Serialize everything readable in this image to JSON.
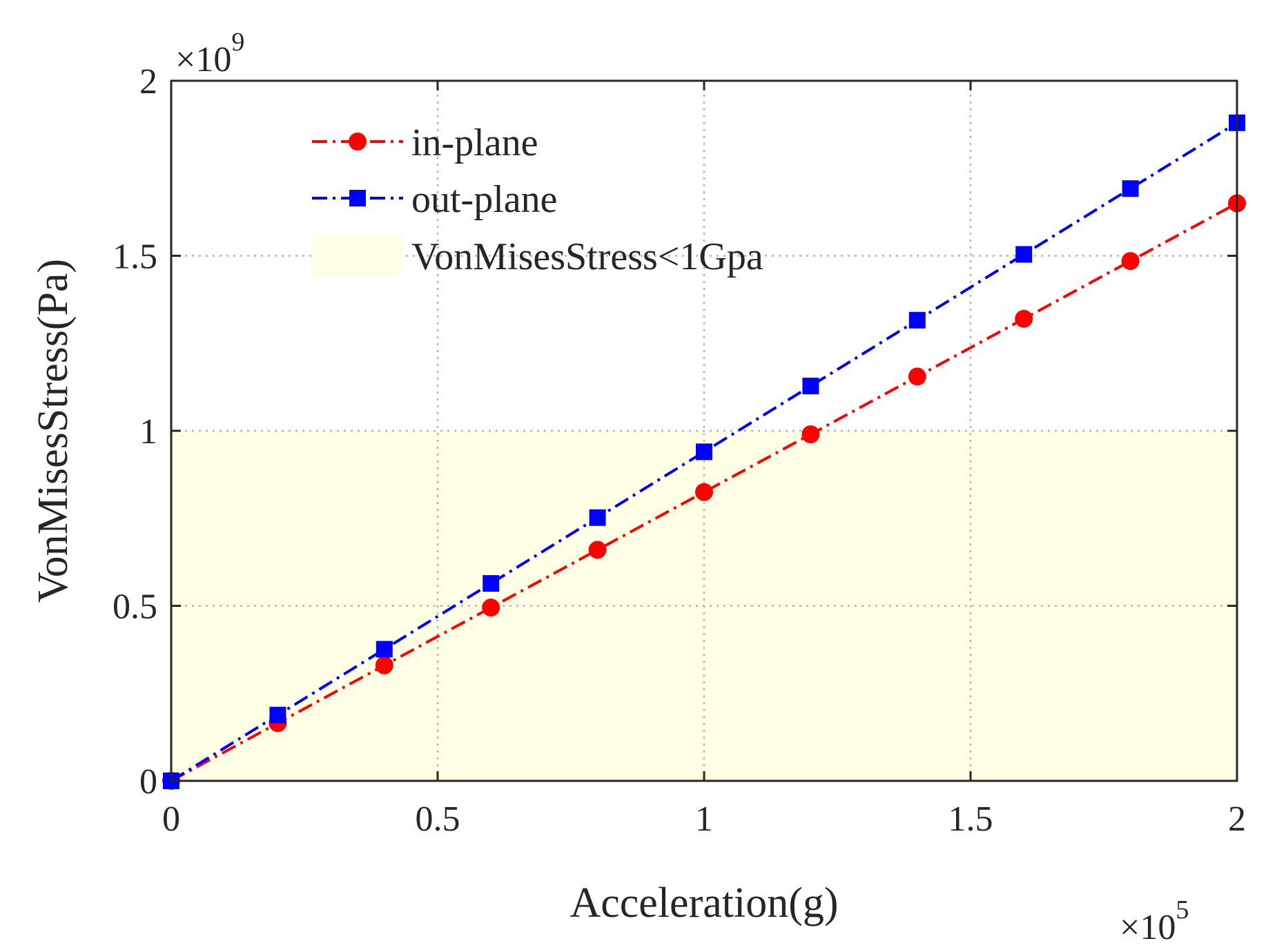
{
  "chart_data": {
    "type": "line",
    "title": "",
    "xlabel": "Acceleration(g)",
    "ylabel": "VonMisesStress(Pa)",
    "x_multiplier_label": "×10",
    "x_multiplier_exponent": "5",
    "y_multiplier_label": "×10",
    "y_multiplier_exponent": "9",
    "xlim": [
      0,
      2
    ],
    "ylim": [
      0,
      2
    ],
    "xticks": [
      0,
      0.5,
      1,
      1.5,
      2
    ],
    "yticks": [
      0,
      0.5,
      1,
      1.5,
      2
    ],
    "xtick_labels": [
      "0",
      "0.5",
      "1",
      "1.5",
      "2"
    ],
    "ytick_labels": [
      "0",
      "0.5",
      "1",
      "1.5",
      "2"
    ],
    "grid": true,
    "legend_position": "top-left",
    "x": [
      0,
      0.2,
      0.4,
      0.6,
      0.8,
      1.0,
      1.2,
      1.4,
      1.6,
      1.8,
      2.0
    ],
    "series": [
      {
        "name": "in-plane",
        "color": "#ff0000",
        "marker": "circle",
        "line_style": "dash-dot",
        "values": [
          0,
          0.165,
          0.33,
          0.495,
          0.66,
          0.825,
          0.99,
          1.155,
          1.32,
          1.485,
          1.65
        ]
      },
      {
        "name": "out-plane",
        "color": "#0000ff",
        "marker": "square",
        "line_style": "dash-dot",
        "values": [
          0,
          0.188,
          0.376,
          0.564,
          0.752,
          0.94,
          1.128,
          1.316,
          1.504,
          1.692,
          1.88
        ]
      }
    ],
    "region": {
      "name": "VonMisesStress<1Gpa",
      "color": "#ffffe6",
      "y_from": 0,
      "y_to": 1
    }
  }
}
